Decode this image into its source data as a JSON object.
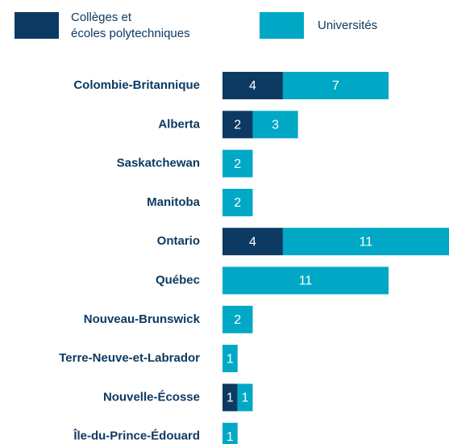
{
  "chart_data": {
    "type": "stacked-bar-horizontal",
    "categories": [
      "Colombie-Britannique",
      "Alberta",
      "Saskatchewan",
      "Manitoba",
      "Ontario",
      "Québec",
      "Nouveau-Brunswick",
      "Terre-Neuve-et-Labrador",
      "Nouvelle-Écosse",
      "Île-du-Prince-Édouard"
    ],
    "series": [
      {
        "name": "Collèges et\nécoles polytechniques",
        "color": "#0d3a63",
        "values": [
          4,
          2,
          null,
          null,
          4,
          null,
          null,
          null,
          1,
          null
        ]
      },
      {
        "name": "Universités",
        "color": "#00a8c6",
        "values": [
          7,
          3,
          2,
          2,
          11,
          11,
          2,
          1,
          1,
          1
        ]
      }
    ]
  }
}
